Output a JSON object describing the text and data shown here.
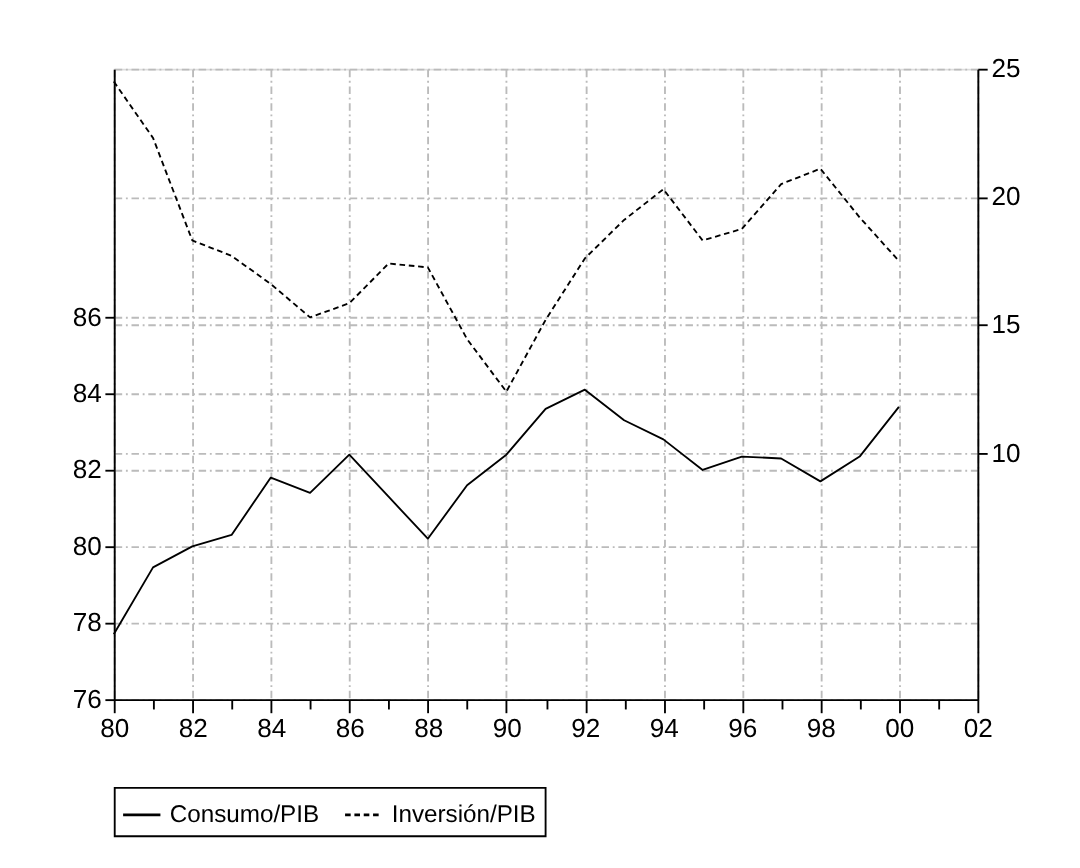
{
  "chart_data": {
    "type": "line",
    "x": [
      1980,
      1981,
      1982,
      1983,
      1984,
      1985,
      1986,
      1987,
      1988,
      1989,
      1990,
      1991,
      1992,
      1993,
      1994,
      1995,
      1996,
      1997,
      1998,
      1999,
      2000
    ],
    "series": [
      {
        "name": "Consumo/PIB",
        "color": "#000000",
        "line_style": "solid",
        "values": [
          77.7,
          79.45,
          80.0,
          80.3,
          81.8,
          81.4,
          82.4,
          81.3,
          80.2,
          81.6,
          82.4,
          83.6,
          84.1,
          83.3,
          82.8,
          82.0,
          82.35,
          82.3,
          81.7,
          82.35,
          83.65
        ]
      },
      {
        "name": "Inversión/PIB",
        "color": "#000000",
        "line_style": "dashed",
        "axis": "y2",
        "values": [
          24.5,
          22.3,
          18.3,
          17.7,
          16.6,
          15.3,
          15.85,
          17.4,
          17.25,
          14.45,
          12.4,
          15.2,
          17.6,
          19.1,
          20.3,
          18.3,
          18.75,
          20.5,
          21.1,
          19.2,
          17.5
        ]
      }
    ],
    "xlim": [
      1980,
      2002
    ],
    "xticks": [
      {
        "value": 1980,
        "label": "80"
      },
      {
        "value": 1981,
        "label": null
      },
      {
        "value": 1982,
        "label": "82"
      },
      {
        "value": 1983,
        "label": null
      },
      {
        "value": 1984,
        "label": "84"
      },
      {
        "value": 1985,
        "label": null
      },
      {
        "value": 1986,
        "label": "86"
      },
      {
        "value": 1987,
        "label": null
      },
      {
        "value": 1988,
        "label": "88"
      },
      {
        "value": 1989,
        "label": null
      },
      {
        "value": 1990,
        "label": "90"
      },
      {
        "value": 1991,
        "label": null
      },
      {
        "value": 1992,
        "label": "92"
      },
      {
        "value": 1993,
        "label": null
      },
      {
        "value": 1994,
        "label": "94"
      },
      {
        "value": 1995,
        "label": null
      },
      {
        "value": 1996,
        "label": "96"
      },
      {
        "value": 1997,
        "label": null
      },
      {
        "value": 1998,
        "label": "98"
      },
      {
        "value": 1999,
        "label": null
      },
      {
        "value": 2000,
        "label": "00"
      },
      {
        "value": 2001,
        "label": null
      },
      {
        "value": 2002,
        "label": "02"
      }
    ],
    "ylim": [
      76,
      92.5
    ],
    "yticks": [
      76,
      78,
      80,
      82,
      84,
      86
    ],
    "y2lim": [
      0.4,
      25
    ],
    "y2ticks": [
      10,
      15,
      20,
      25
    ],
    "grid": true,
    "legend": "bottom"
  }
}
